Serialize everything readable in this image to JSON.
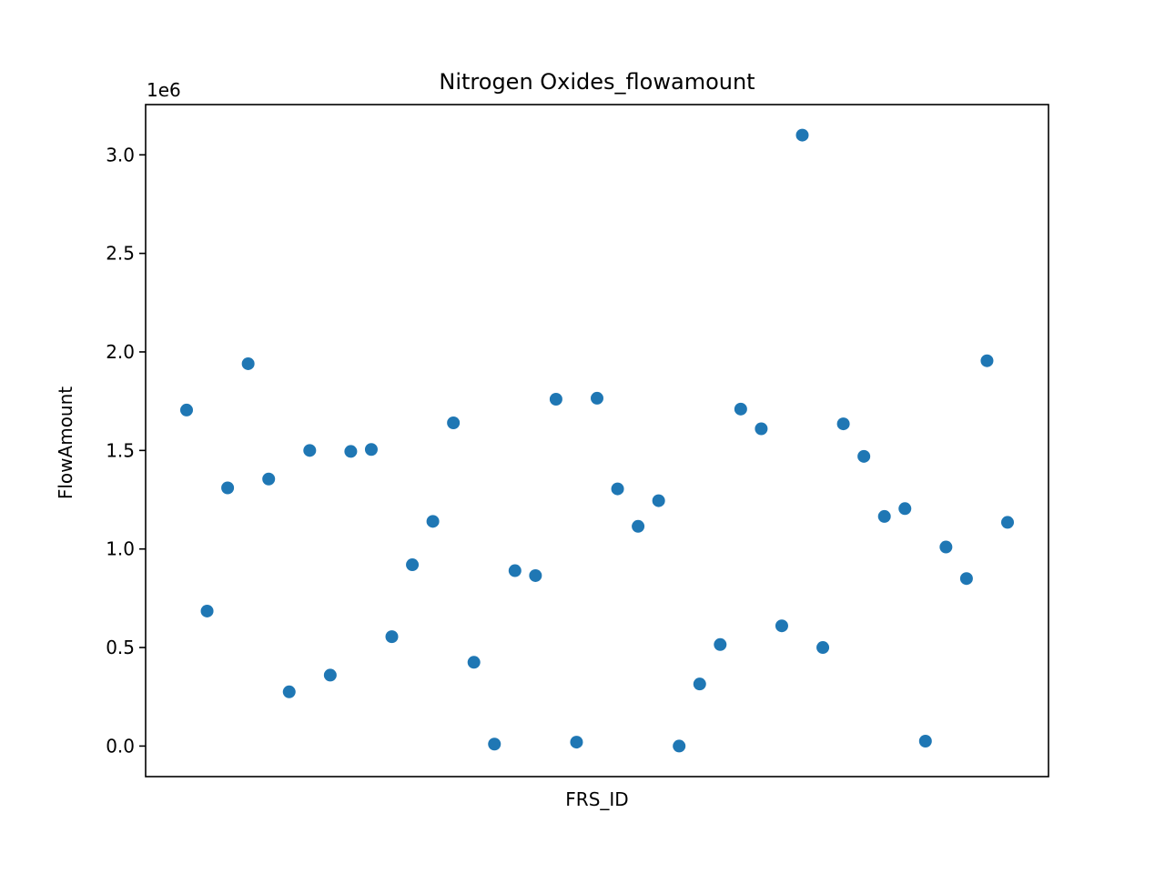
{
  "chart_data": {
    "type": "scatter",
    "title": "Nitrogen Oxides_flowamount",
    "xlabel": "FRS_ID",
    "ylabel": "FlowAmount",
    "y_offset_label": "1e6",
    "y_ticks": [
      0.0,
      0.5,
      1.0,
      1.5,
      2.0,
      2.5,
      3.0
    ],
    "y_tick_labels": [
      "0.0",
      "0.5",
      "1.0",
      "1.5",
      "2.0",
      "2.5",
      "3.0"
    ],
    "ylim": [
      -0.155,
      3.255
    ],
    "y_scale": 1000000,
    "x_ticks_shown": false,
    "grid": false,
    "marker_color": "#1f77b4",
    "series": [
      {
        "values": [
          1.705,
          0.685,
          1.31,
          1.94,
          1.355,
          0.275,
          1.5,
          0.36,
          1.495,
          1.505,
          0.555,
          0.92,
          1.14,
          1.64,
          0.425,
          0.01,
          0.89,
          0.865,
          1.76,
          0.02,
          1.765,
          1.305,
          1.115,
          1.245,
          0.0,
          0.315,
          0.515,
          1.71,
          1.61,
          0.61,
          3.1,
          0.5,
          1.635,
          1.47,
          1.165,
          1.205,
          0.025,
          1.01,
          0.85,
          1.955,
          1.135
        ]
      }
    ]
  }
}
